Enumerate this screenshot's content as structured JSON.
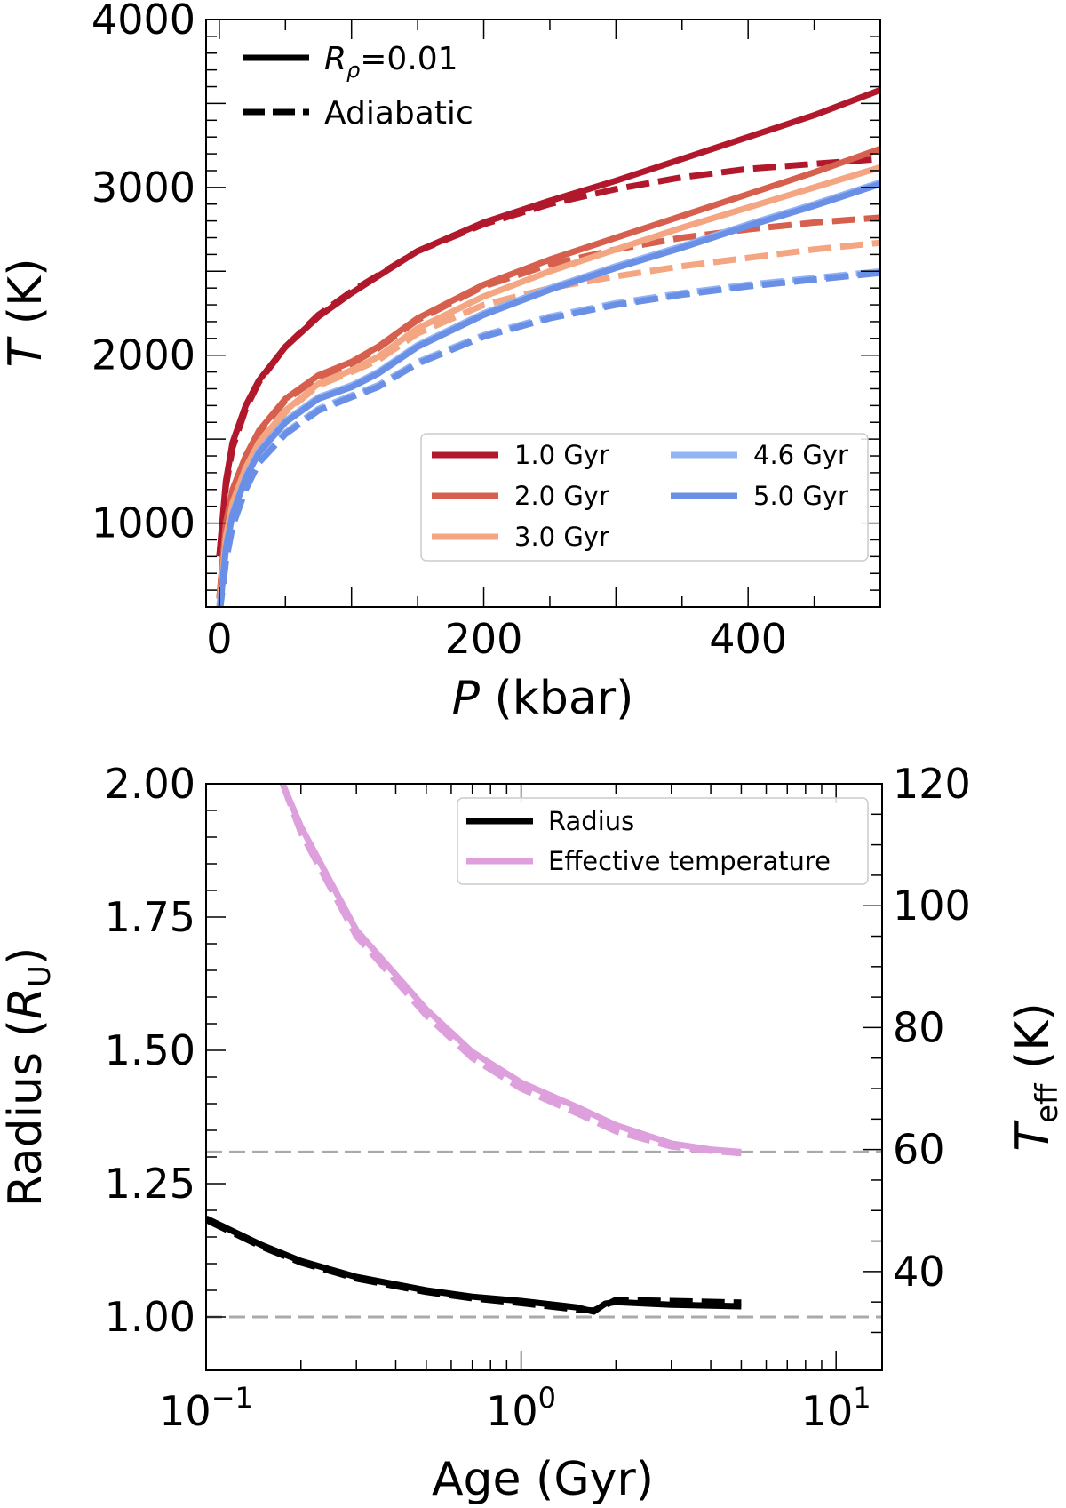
{
  "chart_data": [
    {
      "type": "line",
      "xlabel_var": "P",
      "xlabel_unit": "(kbar)",
      "ylabel_var": "T",
      "ylabel_unit": "(K)",
      "xlim": [
        -10,
        500
      ],
      "ylim": [
        500,
        4000
      ],
      "xticks": [
        0,
        200,
        400
      ],
      "xtick_labels": [
        "0",
        "200",
        "400"
      ],
      "yticks": [
        1000,
        2000,
        3000,
        4000
      ],
      "ytick_labels": [
        "1000",
        "2000",
        "3000",
        "4000"
      ],
      "style_legend": {
        "placement": "top-left",
        "entries": [
          {
            "label_var": "R",
            "label_sub": "ρ",
            "label_rest": "=0.01",
            "style": "solid"
          },
          {
            "label": "Adiabatic",
            "style": "dashed"
          }
        ]
      },
      "series_legend": {
        "placement": "lower-right",
        "entries": [
          "1.0 Gyr",
          "2.0 Gyr",
          "3.0 Gyr",
          "4.6 Gyr",
          "5.0 Gyr"
        ]
      },
      "series": [
        {
          "name": "1.0 Gyr",
          "color": "#b2182b",
          "solid": {
            "x": [
              0,
              5,
              10,
              20,
              30,
              50,
              75,
              100,
              150,
              200,
              250,
              300,
              350,
              400,
              450,
              500
            ],
            "y": [
              800,
              1250,
              1480,
              1700,
              1850,
              2050,
              2230,
              2370,
              2620,
              2790,
              2920,
              3040,
              3170,
              3300,
              3430,
              3580
            ]
          },
          "dashed": {
            "x": [
              0,
              5,
              10,
              20,
              30,
              50,
              75,
              100,
              150,
              200,
              250,
              300,
              350,
              400,
              450,
              500
            ],
            "y": [
              800,
              1220,
              1450,
              1680,
              1840,
              2050,
              2240,
              2380,
              2620,
              2780,
              2900,
              2990,
              3060,
              3110,
              3140,
              3170
            ]
          }
        },
        {
          "name": "2.0 Gyr",
          "color": "#d6604d",
          "solid": {
            "x": [
              0,
              5,
              10,
              20,
              30,
              50,
              75,
              100,
              120,
              150,
              200,
              250,
              300,
              350,
              400,
              450,
              500
            ],
            "y": [
              550,
              1000,
              1200,
              1400,
              1550,
              1740,
              1880,
              1960,
              2050,
              2220,
              2420,
              2570,
              2700,
              2830,
              2960,
              3090,
              3230
            ]
          },
          "dashed": {
            "x": [
              0,
              5,
              10,
              20,
              30,
              50,
              75,
              100,
              120,
              150,
              200,
              250,
              300,
              350,
              400,
              450,
              500
            ],
            "y": [
              550,
              990,
              1190,
              1390,
              1540,
              1730,
              1870,
              1950,
              2040,
              2210,
              2410,
              2540,
              2630,
              2700,
              2750,
              2790,
              2820
            ]
          }
        },
        {
          "name": "3.0 Gyr",
          "color": "#f4a582",
          "solid": {
            "x": [
              0,
              5,
              10,
              20,
              30,
              50,
              75,
              100,
              120,
              150,
              200,
              250,
              300,
              350,
              400,
              450,
              500
            ],
            "y": [
              500,
              920,
              1120,
              1330,
              1480,
              1670,
              1830,
              1910,
              1990,
              2160,
              2350,
              2500,
              2630,
              2760,
              2880,
              3000,
              3120
            ]
          },
          "dashed": {
            "x": [
              0,
              5,
              10,
              20,
              30,
              50,
              75,
              100,
              120,
              150,
              200,
              250,
              300,
              350,
              400,
              450,
              500
            ],
            "y": [
              500,
              910,
              1110,
              1320,
              1470,
              1660,
              1820,
              1900,
              1970,
              2130,
              2300,
              2400,
              2470,
              2530,
              2580,
              2630,
              2670
            ]
          }
        },
        {
          "name": "4.6 Gyr",
          "color": "#92b4f4",
          "solid": {
            "x": [
              0,
              5,
              10,
              20,
              30,
              50,
              75,
              100,
              120,
              150,
              200,
              250,
              300,
              350,
              400,
              450,
              500
            ],
            "y": [
              450,
              860,
              1060,
              1280,
              1430,
              1610,
              1750,
              1820,
              1900,
              2060,
              2250,
              2400,
              2530,
              2650,
              2780,
              2900,
              3030
            ]
          },
          "dashed": {
            "x": [
              0,
              5,
              10,
              20,
              30,
              50,
              75,
              100,
              120,
              150,
              200,
              250,
              300,
              350,
              400,
              450,
              500
            ],
            "y": [
              450,
              780,
              990,
              1210,
              1370,
              1540,
              1680,
              1760,
              1820,
              1960,
              2120,
              2230,
              2310,
              2370,
              2420,
              2460,
              2500
            ]
          }
        },
        {
          "name": "5.0 Gyr",
          "color": "#6a8fe6",
          "solid": {
            "x": [
              0,
              5,
              10,
              20,
              30,
              50,
              75,
              100,
              120,
              150,
              200,
              250,
              300,
              350,
              400,
              450,
              500
            ],
            "y": [
              450,
              850,
              1050,
              1270,
              1420,
              1600,
              1740,
              1810,
              1890,
              2050,
              2240,
              2390,
              2520,
              2640,
              2770,
              2890,
              3020
            ]
          },
          "dashed": {
            "x": [
              0,
              5,
              10,
              20,
              30,
              50,
              75,
              100,
              120,
              150,
              200,
              250,
              300,
              350,
              400,
              450,
              500
            ],
            "y": [
              450,
              770,
              980,
              1200,
              1360,
              1530,
              1670,
              1750,
              1810,
              1950,
              2110,
              2220,
              2300,
              2360,
              2410,
              2450,
              2490
            ]
          }
        }
      ]
    },
    {
      "type": "line",
      "xscale": "log",
      "xlabel": "Age (Gyr)",
      "ylabel_left_text": "Radius",
      "ylabel_left_var": "R",
      "ylabel_left_sub": "U",
      "ylabel_right_var": "T",
      "ylabel_right_sub": "eff",
      "ylabel_right_unit": "(K)",
      "xlim": [
        0.1,
        14
      ],
      "ylim_left": [
        0.9,
        2.0
      ],
      "ylim_right": [
        23.8,
        120
      ],
      "xtick_exponents": [
        "−1",
        "0",
        "1"
      ],
      "xtick_values": [
        0.1,
        1,
        10
      ],
      "yticks_left": [
        1.0,
        1.25,
        1.5,
        1.75,
        2.0
      ],
      "ytick_left_labels": [
        "1.00",
        "1.25",
        "1.50",
        "1.75",
        "2.00"
      ],
      "yticks_right": [
        40,
        60,
        80,
        100,
        120
      ],
      "ytick_right_labels": [
        "40",
        "60",
        "80",
        "100",
        "120"
      ],
      "reference_lines": {
        "radius": 1.0,
        "teff_K": 59.6
      },
      "legend": {
        "placement": "top-right",
        "entries": [
          "Radius",
          "Effective temperature"
        ]
      },
      "series": [
        {
          "name": "Radius",
          "axis": "left",
          "color": "#000000",
          "solid": {
            "x": [
              0.1,
              0.15,
              0.2,
              0.3,
              0.5,
              0.7,
              1.0,
              1.5,
              1.7,
              1.85,
              2.0,
              3.0,
              5.0
            ],
            "y": [
              1.185,
              1.135,
              1.105,
              1.075,
              1.05,
              1.038,
              1.03,
              1.018,
              1.01,
              1.025,
              1.028,
              1.023,
              1.02
            ]
          },
          "dashed": {
            "x": [
              0.1,
              0.15,
              0.2,
              0.3,
              0.5,
              0.7,
              1.0,
              1.5,
              1.7,
              1.85,
              2.0,
              3.0,
              5.0
            ],
            "y": [
              1.182,
              1.132,
              1.102,
              1.072,
              1.047,
              1.035,
              1.026,
              1.014,
              1.012,
              1.022,
              1.032,
              1.03,
              1.027
            ]
          }
        },
        {
          "name": "Effective temperature",
          "axis": "right",
          "color": "#dda0dd",
          "solid": {
            "x": [
              0.175,
              0.2,
              0.3,
              0.5,
              0.7,
              1.0,
              1.5,
              2.0,
              3.0,
              4.0,
              5.0
            ],
            "y": [
              120,
              113,
              96,
              83,
              76,
              71,
              67,
              64,
              61,
              60,
              59.6
            ]
          },
          "dashed": {
            "x": [
              0.175,
              0.2,
              0.3,
              0.5,
              0.7,
              1.0,
              1.5,
              2.0,
              3.0,
              4.0,
              5.0
            ],
            "y": [
              120,
              112,
              95,
              82,
              75,
              70,
              66,
              63,
              60.5,
              59.8,
              59.4
            ]
          }
        }
      ]
    }
  ]
}
